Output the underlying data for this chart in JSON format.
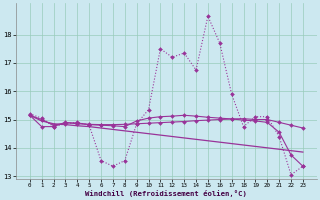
{
  "xlabel": "Windchill (Refroidissement éolien,°C)",
  "background_color": "#cce8f0",
  "grid_color": "#99ccbb",
  "line_color": "#993399",
  "x_data": [
    0,
    1,
    2,
    3,
    4,
    5,
    6,
    7,
    8,
    9,
    10,
    11,
    12,
    13,
    14,
    15,
    16,
    17,
    18,
    19,
    20,
    21,
    22,
    23
  ],
  "series1": [
    15.2,
    15.05,
    14.75,
    14.85,
    14.9,
    14.8,
    13.55,
    13.35,
    13.55,
    14.85,
    15.35,
    17.5,
    17.2,
    17.35,
    16.75,
    18.65,
    17.7,
    15.9,
    14.75,
    15.1,
    15.1,
    14.4,
    13.05,
    13.35
  ],
  "series2": [
    15.15,
    14.75,
    14.75,
    14.9,
    14.85,
    14.83,
    14.82,
    14.82,
    14.83,
    14.85,
    14.87,
    14.89,
    14.91,
    14.93,
    14.96,
    14.98,
    15.0,
    15.02,
    15.03,
    15.0,
    15.0,
    14.9,
    14.8,
    14.7
  ],
  "series3": [
    15.15,
    14.95,
    14.85,
    14.82,
    14.78,
    14.75,
    14.7,
    14.65,
    14.6,
    14.55,
    14.5,
    14.45,
    14.4,
    14.35,
    14.3,
    14.25,
    14.2,
    14.15,
    14.1,
    14.05,
    14.0,
    13.95,
    13.9,
    13.85
  ],
  "series4": [
    15.15,
    15.0,
    14.8,
    14.88,
    14.88,
    14.82,
    14.8,
    14.78,
    14.75,
    14.95,
    15.05,
    15.1,
    15.12,
    15.15,
    15.12,
    15.08,
    15.05,
    15.02,
    14.98,
    14.95,
    14.9,
    14.55,
    13.75,
    13.35
  ],
  "ylim": [
    12.9,
    19.1
  ],
  "yticks": [
    13,
    14,
    15,
    16,
    17,
    18
  ],
  "xticks": [
    0,
    1,
    2,
    3,
    4,
    5,
    6,
    7,
    8,
    9,
    10,
    11,
    12,
    13,
    14,
    15,
    16,
    17,
    18,
    19,
    20,
    21,
    22,
    23
  ]
}
